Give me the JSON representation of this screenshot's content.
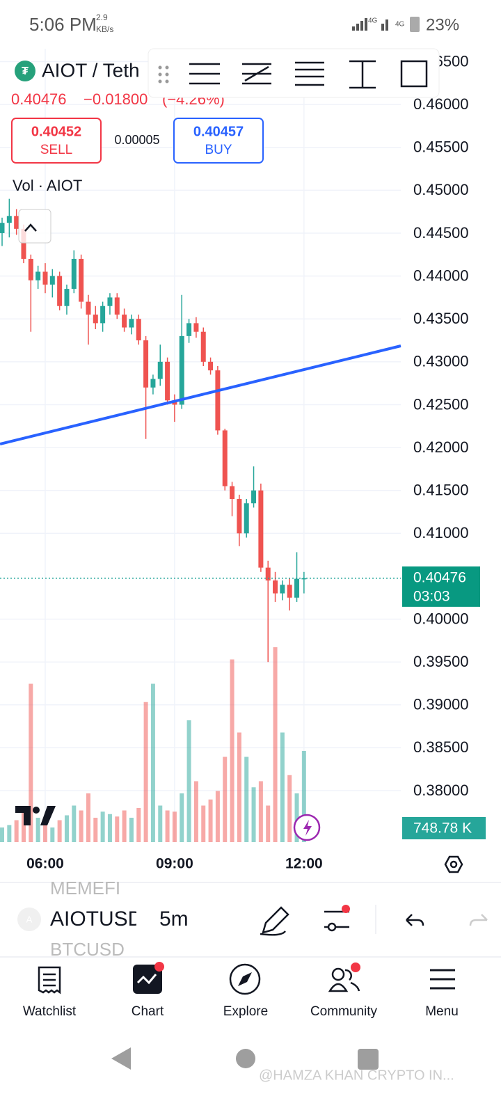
{
  "status_bar": {
    "time": "5:06 PM",
    "speed_value": "2.9",
    "speed_unit": "KB/s",
    "network_1": "4G",
    "network_2": "4G",
    "battery": "23%"
  },
  "header": {
    "symbol": "AIOT / Teth",
    "price": "0.40476",
    "change": "−0.01800",
    "change_pct": "(−4.26%)",
    "sell_price": "0.40452",
    "sell_label": "SELL",
    "spread": "0.00005",
    "buy_price": "0.40457",
    "buy_label": "BUY",
    "volume_label": "Vol · AIOT"
  },
  "chart_data": {
    "type": "candlestick",
    "up_color": "#26a69a",
    "down_color": "#ef5350",
    "grid": true,
    "x": [
      "05:00",
      "05:10",
      "05:20",
      "05:30",
      "05:40",
      "05:50",
      "06:00",
      "06:10",
      "06:20",
      "06:30",
      "06:40",
      "06:50",
      "07:00",
      "07:10",
      "07:20",
      "07:30",
      "07:40",
      "07:50",
      "08:00",
      "08:10",
      "08:20",
      "08:30",
      "08:40",
      "08:50",
      "09:00",
      "09:10",
      "09:20",
      "09:30",
      "09:40",
      "09:50",
      "10:00",
      "10:10",
      "10:20",
      "10:30",
      "10:40",
      "10:50",
      "11:00",
      "11:10",
      "11:20",
      "11:30",
      "11:40",
      "11:50",
      "12:00"
    ],
    "open": [
      0.445,
      0.4462,
      0.447,
      0.4455,
      0.442,
      0.4395,
      0.4405,
      0.439,
      0.44,
      0.4365,
      0.4385,
      0.442,
      0.437,
      0.4355,
      0.4345,
      0.4365,
      0.4375,
      0.4355,
      0.434,
      0.435,
      0.4325,
      0.427,
      0.428,
      0.43,
      0.4255,
      0.425,
      0.433,
      0.4345,
      0.4335,
      0.43,
      0.429,
      0.422,
      0.4155,
      0.414,
      0.41,
      0.4135,
      0.415,
      0.406,
      0.4045,
      0.403,
      0.404,
      0.4025,
      0.4047
    ],
    "high": [
      0.4468,
      0.449,
      0.4478,
      0.446,
      0.4425,
      0.4412,
      0.4415,
      0.4408,
      0.4405,
      0.439,
      0.443,
      0.4425,
      0.4378,
      0.4365,
      0.437,
      0.438,
      0.438,
      0.4362,
      0.4355,
      0.4355,
      0.433,
      0.4285,
      0.432,
      0.4305,
      0.4262,
      0.4378,
      0.435,
      0.4352,
      0.434,
      0.4305,
      0.4295,
      0.4222,
      0.416,
      0.4145,
      0.414,
      0.4178,
      0.4158,
      0.4068,
      0.4055,
      0.4045,
      0.4048,
      0.4078,
      0.4055
    ],
    "low": [
      0.4435,
      0.4445,
      0.4448,
      0.4415,
      0.4335,
      0.4385,
      0.438,
      0.4375,
      0.436,
      0.4355,
      0.438,
      0.4362,
      0.432,
      0.4338,
      0.4335,
      0.4355,
      0.435,
      0.4335,
      0.4332,
      0.432,
      0.421,
      0.4262,
      0.4272,
      0.425,
      0.423,
      0.4245,
      0.4322,
      0.4328,
      0.4295,
      0.4285,
      0.4215,
      0.415,
      0.412,
      0.4085,
      0.4095,
      0.413,
      0.4055,
      0.395,
      0.402,
      0.4022,
      0.401,
      0.402,
      0.403
    ],
    "close": [
      0.4462,
      0.447,
      0.4455,
      0.442,
      0.4395,
      0.4405,
      0.439,
      0.44,
      0.4365,
      0.4385,
      0.442,
      0.437,
      0.4355,
      0.4345,
      0.4365,
      0.4375,
      0.4355,
      0.434,
      0.435,
      0.4325,
      0.427,
      0.428,
      0.43,
      0.4255,
      0.425,
      0.433,
      0.4345,
      0.4335,
      0.43,
      0.429,
      0.422,
      0.4155,
      0.414,
      0.41,
      0.4135,
      0.415,
      0.406,
      0.4045,
      0.403,
      0.404,
      0.4025,
      0.4047,
      0.40476
    ],
    "volume": [
      120,
      140,
      180,
      260,
      1300,
      200,
      150,
      120,
      180,
      220,
      300,
      260,
      400,
      200,
      250,
      230,
      210,
      260,
      200,
      280,
      1150,
      1300,
      300,
      260,
      250,
      400,
      1000,
      500,
      300,
      350,
      420,
      700,
      1500,
      900,
      700,
      450,
      500,
      300,
      1600,
      900,
      550,
      400,
      748.78
    ],
    "volume_label": "748.78 K",
    "countdown": "03:03",
    "ylim": [
      0.374,
      0.4665
    ],
    "vlim": [
      0,
      2000
    ],
    "yticks": [
      {
        "value": 0.38,
        "label": "0.38000"
      },
      {
        "value": 0.385,
        "label": "0.38500"
      },
      {
        "value": 0.39,
        "label": "0.39000"
      },
      {
        "value": 0.395,
        "label": "0.39500"
      },
      {
        "value": 0.4,
        "label": "0.40000"
      },
      {
        "value": 0.41,
        "label": "0.41000"
      },
      {
        "value": 0.415,
        "label": "0.41500"
      },
      {
        "value": 0.42,
        "label": "0.42000"
      },
      {
        "value": 0.425,
        "label": "0.42500"
      },
      {
        "value": 0.43,
        "label": "0.43000"
      },
      {
        "value": 0.435,
        "label": "0.43500"
      },
      {
        "value": 0.44,
        "label": "0.44000"
      },
      {
        "value": 0.445,
        "label": "0.44500"
      },
      {
        "value": 0.45,
        "label": "0.45000"
      },
      {
        "value": 0.455,
        "label": "0.45500"
      },
      {
        "value": 0.46,
        "label": "0.46000"
      },
      {
        "value": 0.465,
        "label": "0.46500"
      }
    ],
    "xticks": [
      "06:00",
      "09:00",
      "12:00"
    ]
  },
  "symbol_bar": {
    "prev": "MEMEFI",
    "current": "AIOTUSD",
    "interval": "5m",
    "next": "BTCUSD"
  },
  "nav": [
    "Watchlist",
    "Chart",
    "Explore",
    "Community",
    "Menu"
  ],
  "watermark": "@HAMZA KHAN CRYPTO IN..."
}
